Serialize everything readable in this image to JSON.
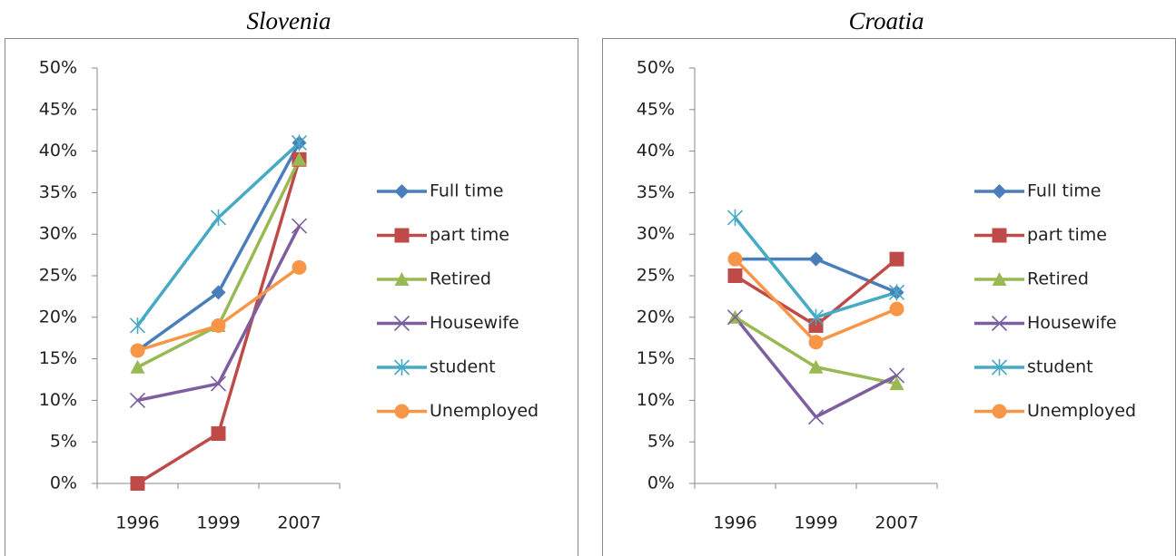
{
  "chart_data": [
    {
      "type": "line",
      "title": "Slovenia",
      "categories": [
        "1996",
        "1999",
        "2007"
      ],
      "ylim": [
        0,
        50
      ],
      "yticks": [
        {
          "value": 0,
          "label": "0%"
        },
        {
          "value": 5,
          "label": "5%"
        },
        {
          "value": 10,
          "label": "10%"
        },
        {
          "value": 15,
          "label": "15%"
        },
        {
          "value": 20,
          "label": "20%"
        },
        {
          "value": 25,
          "label": "25%"
        },
        {
          "value": 30,
          "label": "30%"
        },
        {
          "value": 35,
          "label": "35%"
        },
        {
          "value": 40,
          "label": "40%"
        },
        {
          "value": 45,
          "label": "45%"
        },
        {
          "value": 50,
          "label": "50%"
        }
      ],
      "grid": false,
      "legend": "right",
      "series": [
        {
          "name": "Full time",
          "color": "#4a7ebb",
          "marker": "diamond",
          "values": [
            16,
            23,
            41
          ]
        },
        {
          "name": "part time",
          "color": "#be4b48",
          "marker": "square",
          "values": [
            0,
            6,
            39
          ]
        },
        {
          "name": "Retired",
          "color": "#98b954",
          "marker": "triangle",
          "values": [
            14,
            19,
            39
          ]
        },
        {
          "name": "Housewife",
          "color": "#7d5fa0",
          "marker": "x",
          "values": [
            10,
            12,
            31
          ]
        },
        {
          "name": "student",
          "color": "#46aac5",
          "marker": "star",
          "values": [
            19,
            32,
            41
          ]
        },
        {
          "name": "Unemployed",
          "color": "#f79646",
          "marker": "circle",
          "values": [
            16,
            19,
            26
          ]
        }
      ]
    },
    {
      "type": "line",
      "title": "Croatia",
      "categories": [
        "1996",
        "1999",
        "2007"
      ],
      "ylim": [
        0,
        50
      ],
      "yticks": [
        {
          "value": 0,
          "label": "0%"
        },
        {
          "value": 5,
          "label": "5%"
        },
        {
          "value": 10,
          "label": "10%"
        },
        {
          "value": 15,
          "label": "15%"
        },
        {
          "value": 20,
          "label": "20%"
        },
        {
          "value": 25,
          "label": "25%"
        },
        {
          "value": 30,
          "label": "30%"
        },
        {
          "value": 35,
          "label": "35%"
        },
        {
          "value": 40,
          "label": "40%"
        },
        {
          "value": 45,
          "label": "45%"
        },
        {
          "value": 50,
          "label": "50%"
        }
      ],
      "grid": false,
      "legend": "right",
      "series": [
        {
          "name": "Full time",
          "color": "#4a7ebb",
          "marker": "diamond",
          "values": [
            27,
            27,
            23
          ]
        },
        {
          "name": "part time",
          "color": "#be4b48",
          "marker": "square",
          "values": [
            25,
            19,
            27
          ]
        },
        {
          "name": "Retired",
          "color": "#98b954",
          "marker": "triangle",
          "values": [
            20,
            14,
            12
          ]
        },
        {
          "name": "Housewife",
          "color": "#7d5fa0",
          "marker": "x",
          "values": [
            20,
            8,
            13
          ]
        },
        {
          "name": "student",
          "color": "#46aac5",
          "marker": "star",
          "values": [
            32,
            20,
            23
          ]
        },
        {
          "name": "Unemployed",
          "color": "#f79646",
          "marker": "circle",
          "values": [
            27,
            17,
            21
          ]
        }
      ]
    }
  ]
}
